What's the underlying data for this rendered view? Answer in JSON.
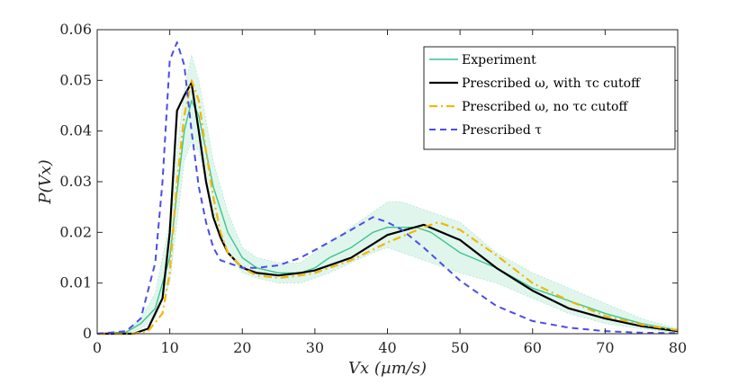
{
  "chart_data": {
    "type": "line",
    "title": "",
    "xlabel": "Vx (µm/s)",
    "ylabel": "P(Vx)",
    "xlim": [
      0,
      80
    ],
    "ylim": [
      0,
      0.06
    ],
    "xticks": [
      0,
      10,
      20,
      30,
      40,
      50,
      60,
      70,
      80
    ],
    "yticks": [
      0,
      0.01,
      0.02,
      0.03,
      0.04,
      0.05,
      0.06
    ],
    "xtick_labels": [
      "0",
      "10",
      "20",
      "30",
      "40",
      "50",
      "60",
      "70",
      "80"
    ],
    "ytick_labels": [
      "0",
      "0.01",
      "0.02",
      "0.03",
      "0.04",
      "0.05",
      "0.06"
    ],
    "grid": false,
    "legend_position": "top-right",
    "band": {
      "name": "Experiment spread",
      "color": "#3cc48e",
      "x": [
        0,
        4,
        6,
        8,
        10,
        11,
        12,
        13,
        14,
        15,
        16,
        18,
        20,
        22,
        25,
        28,
        30,
        32,
        35,
        38,
        40,
        42,
        44,
        46,
        48,
        50,
        55,
        60,
        65,
        70,
        75,
        80
      ],
      "lower": [
        0,
        0,
        0.001,
        0.003,
        0.01,
        0.022,
        0.034,
        0.038,
        0.036,
        0.03,
        0.024,
        0.016,
        0.012,
        0.011,
        0.01,
        0.01,
        0.011,
        0.012,
        0.014,
        0.016,
        0.017,
        0.016,
        0.015,
        0.014,
        0.013,
        0.012,
        0.01,
        0.007,
        0.004,
        0.002,
        0.001,
        0.0002
      ],
      "upper": [
        0,
        0.0005,
        0.003,
        0.008,
        0.022,
        0.036,
        0.048,
        0.055,
        0.05,
        0.042,
        0.034,
        0.024,
        0.017,
        0.015,
        0.014,
        0.014,
        0.016,
        0.018,
        0.021,
        0.024,
        0.026,
        0.026,
        0.025,
        0.024,
        0.023,
        0.022,
        0.016,
        0.012,
        0.009,
        0.006,
        0.003,
        0.001
      ]
    },
    "series": [
      {
        "name": "Experiment",
        "color": "#3cc48e",
        "dash": "solid",
        "width": 1.4,
        "x": [
          0,
          4,
          6,
          8,
          10,
          11,
          12,
          13,
          14,
          15,
          16,
          18,
          20,
          22,
          25,
          28,
          30,
          32,
          35,
          38,
          40,
          42,
          44,
          46,
          48,
          50,
          55,
          60,
          65,
          70,
          75,
          80
        ],
        "y": [
          0,
          0.0003,
          0.002,
          0.005,
          0.015,
          0.028,
          0.04,
          0.046,
          0.043,
          0.036,
          0.029,
          0.02,
          0.015,
          0.013,
          0.012,
          0.012,
          0.013,
          0.015,
          0.017,
          0.02,
          0.021,
          0.021,
          0.021,
          0.02,
          0.018,
          0.016,
          0.013,
          0.009,
          0.0065,
          0.004,
          0.002,
          0.0007
        ]
      },
      {
        "name": "Prescribed ω, with τc cutoff",
        "color": "#000000",
        "dash": "solid",
        "width": 2.2,
        "x": [
          0,
          5,
          7,
          9,
          10,
          11,
          12,
          13,
          14,
          15,
          16,
          17,
          18,
          20,
          22,
          25,
          28,
          30,
          35,
          40,
          45,
          50,
          55,
          60,
          65,
          70,
          75,
          80
        ],
        "y": [
          0,
          0,
          0.001,
          0.007,
          0.02,
          0.044,
          0.047,
          0.0495,
          0.04,
          0.03,
          0.023,
          0.019,
          0.016,
          0.013,
          0.012,
          0.0115,
          0.012,
          0.0125,
          0.015,
          0.0195,
          0.0215,
          0.0185,
          0.013,
          0.0085,
          0.005,
          0.003,
          0.0015,
          0.0005
        ]
      },
      {
        "name": "Prescribed ω, no τc cutoff",
        "color": "#f2b705",
        "dash": "dashdot",
        "width": 2.2,
        "x": [
          0,
          5,
          7,
          9,
          10,
          11,
          12,
          13,
          14,
          15,
          16,
          17,
          18,
          20,
          22,
          25,
          28,
          30,
          35,
          40,
          45,
          47,
          50,
          55,
          60,
          65,
          70,
          75,
          80
        ],
        "y": [
          0,
          0,
          0.0005,
          0.004,
          0.012,
          0.03,
          0.043,
          0.05,
          0.046,
          0.036,
          0.027,
          0.02,
          0.016,
          0.013,
          0.0115,
          0.011,
          0.0115,
          0.012,
          0.0145,
          0.018,
          0.021,
          0.022,
          0.0205,
          0.0155,
          0.01,
          0.0065,
          0.0035,
          0.0018,
          0.0007
        ]
      },
      {
        "name": "Prescribed τ",
        "color": "#4a4de6",
        "dash": "dashed",
        "width": 2.0,
        "x": [
          0,
          4,
          6,
          8,
          9,
          10,
          11,
          12,
          13,
          14,
          15,
          16,
          17,
          18,
          20,
          22,
          25,
          28,
          30,
          35,
          38,
          40,
          42,
          45,
          50,
          55,
          60,
          65,
          70,
          75,
          80
        ],
        "y": [
          0,
          0.0005,
          0.003,
          0.014,
          0.03,
          0.054,
          0.0575,
          0.053,
          0.04,
          0.029,
          0.022,
          0.017,
          0.0145,
          0.014,
          0.013,
          0.013,
          0.0135,
          0.015,
          0.0165,
          0.0205,
          0.023,
          0.022,
          0.0205,
          0.017,
          0.0105,
          0.0055,
          0.0025,
          0.0012,
          0.0005,
          0.0002,
          0.0001
        ]
      }
    ]
  }
}
